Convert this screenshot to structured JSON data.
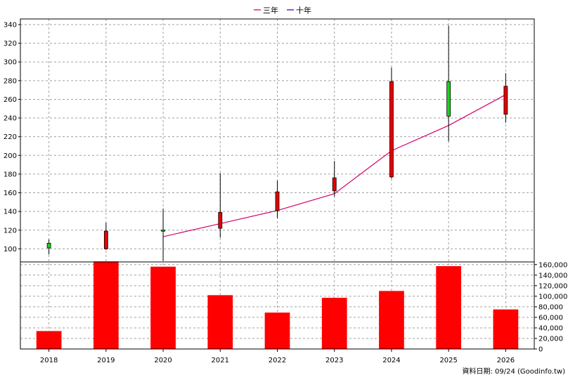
{
  "chart_data": {
    "type": "candlestick",
    "categories": [
      "2018",
      "2019",
      "2020",
      "2021",
      "2022",
      "2023",
      "2024",
      "2025",
      "2026"
    ],
    "legend": [
      {
        "name": "三年",
        "color": "#d6006b"
      },
      {
        "name": "十年",
        "color": "#5a00b4"
      }
    ],
    "price_axis": {
      "ylim": [
        86,
        346
      ],
      "ticks": [
        100,
        120,
        140,
        160,
        180,
        200,
        220,
        240,
        260,
        280,
        300,
        320,
        340
      ],
      "tick_labels": [
        "100",
        "120",
        "140",
        "160",
        "180",
        "200",
        "220",
        "240",
        "260",
        "280",
        "300",
        "320",
        "340"
      ]
    },
    "volume_axis": {
      "ylim": [
        0,
        165000
      ],
      "ticks": [
        0,
        20000,
        40000,
        60000,
        80000,
        100000,
        120000,
        140000,
        160000
      ],
      "tick_labels": [
        "0",
        "20,000",
        "40,000",
        "60,000",
        "80,000",
        "100,000",
        "120,000",
        "140,000",
        "160,000"
      ]
    },
    "candles": [
      {
        "x": "2018",
        "open": 101,
        "high": 110,
        "low": 94,
        "close": 106
      },
      {
        "x": "2019",
        "open": 119,
        "high": 128,
        "low": 99,
        "close": 100
      },
      {
        "x": "2020",
        "open": 120,
        "high": 143,
        "low": 87,
        "close": 120
      },
      {
        "x": "2021",
        "open": 139,
        "high": 181,
        "low": 112,
        "close": 122
      },
      {
        "x": "2022",
        "open": 161,
        "high": 173,
        "low": 133,
        "close": 141
      },
      {
        "x": "2023",
        "open": 176,
        "high": 194,
        "low": 156,
        "close": 162
      },
      {
        "x": "2024",
        "open": 279,
        "high": 294,
        "low": 175,
        "close": 177
      },
      {
        "x": "2025",
        "open": 242,
        "high": 339,
        "low": 215,
        "close": 279
      },
      {
        "x": "2026",
        "open": 274,
        "high": 288,
        "low": 235,
        "close": 244
      }
    ],
    "series": [
      {
        "name": "三年",
        "x": [
          "2020",
          "2021",
          "2022",
          "2023",
          "2024",
          "2025",
          "2026"
        ],
        "values": [
          113,
          127,
          141,
          159,
          205,
          232,
          265
        ],
        "color": "#d6006b"
      }
    ],
    "volume": [
      34000,
      166000,
      156000,
      102000,
      69000,
      97000,
      110000,
      157000,
      75000
    ],
    "grid": true,
    "legend_position": "top-center",
    "colors": {
      "up": "#19d219",
      "down": "#e60000",
      "volume": "#ff0000",
      "grid": "#a0a0a0"
    }
  },
  "footer": {
    "source": "資料日期: 09/24  (Goodinfo.tw)"
  }
}
